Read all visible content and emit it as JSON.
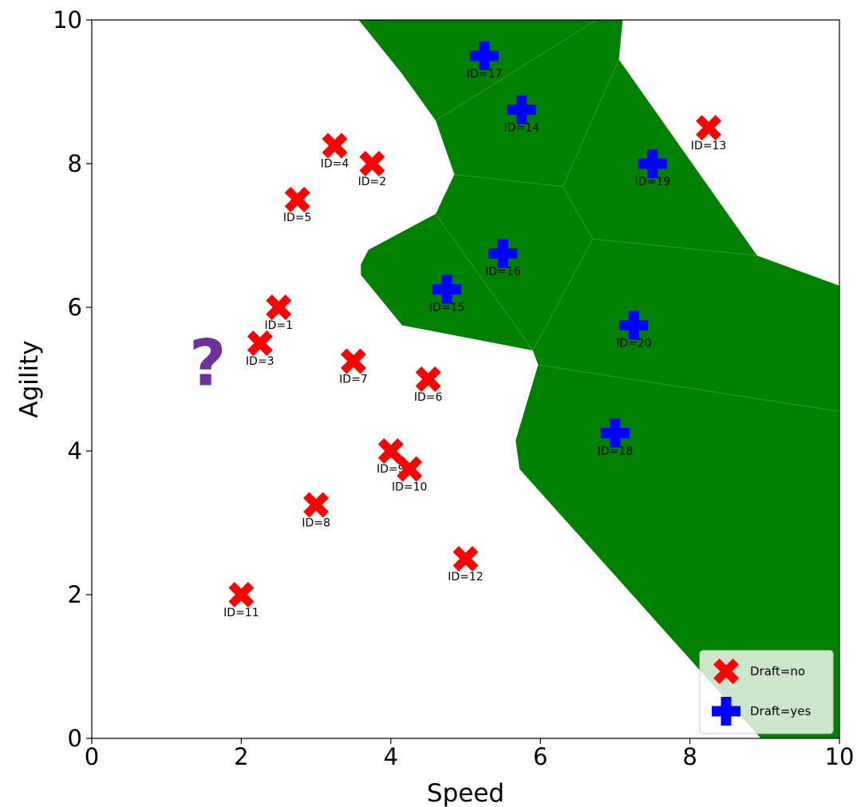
{
  "chart_data": {
    "type": "scatter",
    "xlabel": "Speed",
    "ylabel": "Agility",
    "xlim": [
      0,
      10
    ],
    "ylim": [
      0,
      10
    ],
    "xticks": [
      "0",
      "2",
      "4",
      "6",
      "8",
      "10"
    ],
    "yticks": [
      "0",
      "2",
      "4",
      "6",
      "8",
      "10"
    ],
    "grid": false,
    "legend_position": "bottom-right",
    "series": [
      {
        "name": "Draft=no",
        "marker": "x",
        "color": "#ff0000",
        "points": [
          {
            "id": "ID=1",
            "x": 2.5,
            "y": 6.0
          },
          {
            "id": "ID=2",
            "x": 3.75,
            "y": 8.0
          },
          {
            "id": "ID=3",
            "x": 2.25,
            "y": 5.5
          },
          {
            "id": "ID=4",
            "x": 3.25,
            "y": 8.25
          },
          {
            "id": "ID=5",
            "x": 2.75,
            "y": 7.5
          },
          {
            "id": "ID=6",
            "x": 4.5,
            "y": 5.0
          },
          {
            "id": "ID=7",
            "x": 3.5,
            "y": 5.25
          },
          {
            "id": "ID=8",
            "x": 3.0,
            "y": 3.25
          },
          {
            "id": "ID=9",
            "x": 4.0,
            "y": 4.0
          },
          {
            "id": "ID=10",
            "x": 4.25,
            "y": 3.75
          },
          {
            "id": "ID=11",
            "x": 2.0,
            "y": 2.0
          },
          {
            "id": "ID=12",
            "x": 5.0,
            "y": 2.5
          },
          {
            "id": "ID=13",
            "x": 8.25,
            "y": 8.5
          }
        ]
      },
      {
        "name": "Draft=yes",
        "marker": "plus",
        "color": "#0000ff",
        "points": [
          {
            "id": "ID=14",
            "x": 5.75,
            "y": 8.75
          },
          {
            "id": "ID=15",
            "x": 4.75,
            "y": 6.25
          },
          {
            "id": "ID=16",
            "x": 5.5,
            "y": 6.75
          },
          {
            "id": "ID=17",
            "x": 5.25,
            "y": 9.5
          },
          {
            "id": "ID=18",
            "x": 7.0,
            "y": 4.25
          },
          {
            "id": "ID=19",
            "x": 7.5,
            "y": 8.0
          },
          {
            "id": "ID=20",
            "x": 7.25,
            "y": 5.75
          }
        ]
      }
    ],
    "query_point": {
      "label": "?",
      "x": 1.55,
      "y": 5.25,
      "color": "#7030a0"
    },
    "region": {
      "color": "#008000",
      "outline": [
        [
          3.57,
          10.0
        ],
        [
          4.15,
          9.25
        ],
        [
          4.6,
          8.6
        ],
        [
          4.85,
          7.85
        ],
        [
          4.6,
          7.3
        ],
        [
          3.7,
          6.8
        ],
        [
          3.6,
          6.6
        ],
        [
          3.6,
          6.45
        ],
        [
          4.15,
          5.75
        ],
        [
          5.9,
          5.4
        ],
        [
          5.97,
          5.2
        ],
        [
          5.67,
          4.15
        ],
        [
          5.72,
          3.75
        ],
        [
          8.95,
          0.0
        ],
        [
          10.0,
          0.0
        ],
        [
          10.0,
          6.3
        ],
        [
          8.9,
          6.72
        ],
        [
          7.05,
          9.45
        ],
        [
          7.1,
          10.0
        ]
      ],
      "cell_edges": [
        [
          [
            4.6,
            8.6
          ],
          [
            6.75,
            10.0
          ]
        ],
        [
          [
            4.85,
            7.85
          ],
          [
            6.3,
            7.68
          ]
        ],
        [
          [
            6.3,
            7.68
          ],
          [
            7.05,
            9.45
          ]
        ],
        [
          [
            6.3,
            7.68
          ],
          [
            6.7,
            6.95
          ]
        ],
        [
          [
            4.6,
            7.3
          ],
          [
            5.9,
            5.4
          ]
        ],
        [
          [
            6.7,
            6.95
          ],
          [
            8.9,
            6.72
          ]
        ],
        [
          [
            6.7,
            6.95
          ],
          [
            5.9,
            5.4
          ]
        ],
        [
          [
            5.97,
            5.2
          ],
          [
            10.0,
            4.55
          ]
        ]
      ]
    }
  }
}
